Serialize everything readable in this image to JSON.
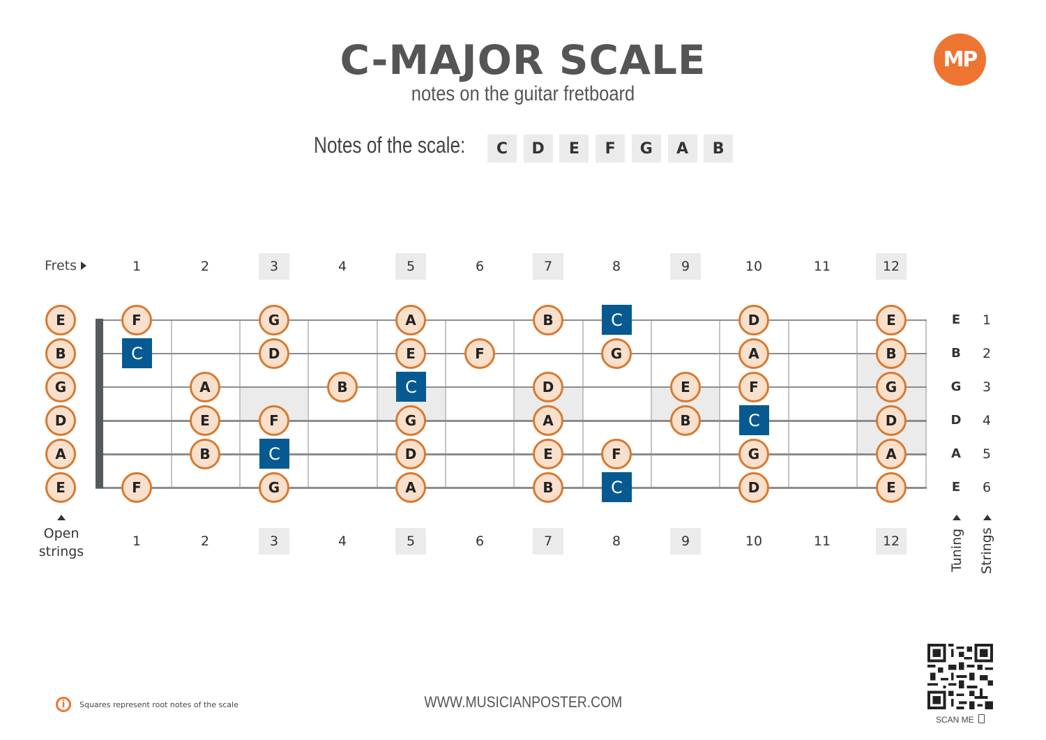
{
  "header": {
    "title": "C-MAJOR SCALE",
    "subtitle": "notes on the guitar fretboard",
    "notes_label": "Notes of the scale:",
    "scale_notes": [
      "C",
      "D",
      "E",
      "F",
      "G",
      "A",
      "B"
    ],
    "logo_text": "MP"
  },
  "colors": {
    "note_fill": "#f9e0cc",
    "note_border": "#d9782d",
    "root_fill": "#075a91",
    "inlay": "#ebebeb",
    "accent": "#ee7431",
    "title": "#555555"
  },
  "fretboard": {
    "frets_label": "Frets",
    "fret_numbers": [
      "1",
      "2",
      "3",
      "4",
      "5",
      "6",
      "7",
      "8",
      "9",
      "10",
      "11",
      "12"
    ],
    "highlighted_frets": [
      3,
      5,
      7,
      9,
      12
    ],
    "open_strings_label_line1": "Open",
    "open_strings_label_line2": "strings",
    "tuning_label": "Tuning",
    "strings_label": "Strings",
    "strings": [
      {
        "number": "1",
        "tuning": "E",
        "open": "E",
        "notes": [
          {
            "fret": 1,
            "note": "F"
          },
          {
            "fret": 3,
            "note": "G"
          },
          {
            "fret": 5,
            "note": "A"
          },
          {
            "fret": 7,
            "note": "B"
          },
          {
            "fret": 8,
            "note": "C",
            "root": true
          },
          {
            "fret": 10,
            "note": "D"
          },
          {
            "fret": 12,
            "note": "E"
          }
        ]
      },
      {
        "number": "2",
        "tuning": "B",
        "open": "B",
        "notes": [
          {
            "fret": 1,
            "note": "C",
            "root": true
          },
          {
            "fret": 3,
            "note": "D"
          },
          {
            "fret": 5,
            "note": "E"
          },
          {
            "fret": 6,
            "note": "F"
          },
          {
            "fret": 8,
            "note": "G"
          },
          {
            "fret": 10,
            "note": "A"
          },
          {
            "fret": 12,
            "note": "B"
          }
        ]
      },
      {
        "number": "3",
        "tuning": "G",
        "open": "G",
        "notes": [
          {
            "fret": 2,
            "note": "A"
          },
          {
            "fret": 4,
            "note": "B"
          },
          {
            "fret": 5,
            "note": "C",
            "root": true
          },
          {
            "fret": 7,
            "note": "D"
          },
          {
            "fret": 9,
            "note": "E"
          },
          {
            "fret": 10,
            "note": "F"
          },
          {
            "fret": 12,
            "note": "G"
          }
        ]
      },
      {
        "number": "4",
        "tuning": "D",
        "open": "D",
        "notes": [
          {
            "fret": 2,
            "note": "E"
          },
          {
            "fret": 3,
            "note": "F"
          },
          {
            "fret": 5,
            "note": "G"
          },
          {
            "fret": 7,
            "note": "A"
          },
          {
            "fret": 9,
            "note": "B"
          },
          {
            "fret": 10,
            "note": "C",
            "root": true
          },
          {
            "fret": 12,
            "note": "D"
          }
        ]
      },
      {
        "number": "5",
        "tuning": "A",
        "open": "A",
        "notes": [
          {
            "fret": 2,
            "note": "B"
          },
          {
            "fret": 3,
            "note": "C",
            "root": true
          },
          {
            "fret": 5,
            "note": "D"
          },
          {
            "fret": 7,
            "note": "E"
          },
          {
            "fret": 8,
            "note": "F"
          },
          {
            "fret": 10,
            "note": "G"
          },
          {
            "fret": 12,
            "note": "A"
          }
        ]
      },
      {
        "number": "6",
        "tuning": "E",
        "open": "E",
        "notes": [
          {
            "fret": 1,
            "note": "F"
          },
          {
            "fret": 3,
            "note": "G"
          },
          {
            "fret": 5,
            "note": "A"
          },
          {
            "fret": 7,
            "note": "B"
          },
          {
            "fret": 8,
            "note": "C",
            "root": true
          },
          {
            "fret": 10,
            "note": "D"
          },
          {
            "fret": 12,
            "note": "E"
          }
        ]
      }
    ]
  },
  "footer": {
    "info_icon": "info-icon",
    "info_text": "Squares represent root notes of the scale",
    "website": "WWW.MUSICIANPOSTER.COM",
    "scan_label": "SCAN ME"
  }
}
